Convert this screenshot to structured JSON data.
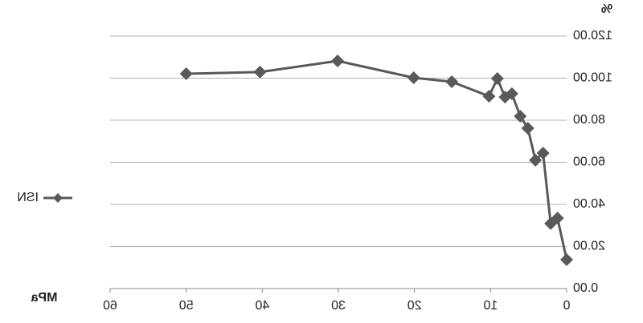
{
  "chart_data": {
    "type": "line",
    "x_label": "MPa",
    "y_label": "%",
    "x": [
      50,
      40.3,
      30.1,
      20.1,
      15.1,
      10.2,
      9.1,
      8.1,
      7.2,
      6.1,
      5.1,
      4.1,
      3.1,
      2.1,
      1.2,
      0
    ],
    "series": [
      {
        "name": "ISN",
        "color": "#595959",
        "values": [
          102.1,
          102.9,
          108.2,
          100.2,
          98.3,
          91.4,
          99.8,
          91.0,
          92.6,
          81.9,
          76.2,
          61.0,
          64.4,
          30.9,
          33.5,
          13.7
        ]
      }
    ],
    "xlim": [
      0,
      60
    ],
    "xticks": [
      0,
      10,
      20,
      30,
      40,
      50,
      60
    ],
    "ylim": [
      0,
      120
    ],
    "yticks": [
      {
        "value": 0,
        "label": "0.00"
      },
      {
        "value": 20,
        "label": "20.00"
      },
      {
        "value": 40,
        "label": "40.00"
      },
      {
        "value": 60,
        "label": "60.00"
      },
      {
        "value": 80,
        "label": "80.00"
      },
      {
        "value": 100,
        "label": "100.00"
      },
      {
        "value": 120,
        "label": "120.00"
      }
    ],
    "grid": true,
    "legend": "right"
  }
}
